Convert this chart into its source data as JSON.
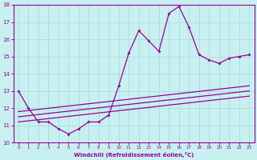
{
  "xlabel": "Windchill (Refroidissement éolien,°C)",
  "bg_color": "#c8f0f0",
  "line_color": "#990099",
  "grid_color": "#aadddd",
  "xlim": [
    -0.5,
    23.5
  ],
  "ylim": [
    10,
    18
  ],
  "xticks": [
    0,
    1,
    2,
    3,
    4,
    5,
    6,
    7,
    8,
    9,
    10,
    11,
    12,
    13,
    14,
    15,
    16,
    17,
    18,
    19,
    20,
    21,
    22,
    23
  ],
  "yticks": [
    10,
    11,
    12,
    13,
    14,
    15,
    16,
    17,
    18
  ],
  "jagged_x": [
    0,
    1,
    2,
    3,
    4,
    5,
    6,
    7,
    8,
    9,
    10,
    11,
    12,
    13,
    14,
    15,
    16,
    17,
    18,
    19,
    20,
    21,
    22,
    23
  ],
  "jagged_y": [
    13.0,
    12.0,
    11.2,
    11.2,
    10.8,
    10.5,
    10.8,
    11.2,
    11.2,
    11.6,
    13.3,
    15.2,
    16.5,
    15.9,
    15.3,
    17.5,
    17.9,
    16.7,
    15.1,
    14.8,
    14.6,
    14.9,
    15.0,
    15.1
  ],
  "line1_x": [
    0,
    23
  ],
  "line1_y": [
    11.8,
    13.3
  ],
  "line2_x": [
    0,
    23
  ],
  "line2_y": [
    11.5,
    13.0
  ],
  "line3_x": [
    0,
    23
  ],
  "line3_y": [
    11.2,
    12.7
  ],
  "figsize": [
    3.2,
    2.0
  ],
  "dpi": 100
}
